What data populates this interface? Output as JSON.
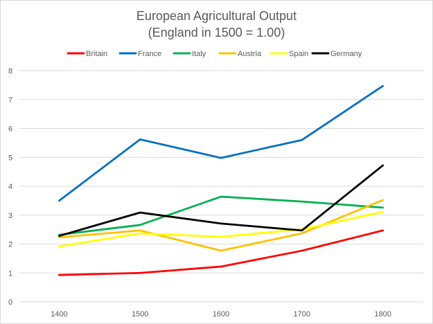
{
  "chart_data": {
    "type": "line",
    "title": "European Agricultural Output",
    "subtitle": "(England in 1500 = 1.00)",
    "xlabel": "",
    "ylabel": "",
    "categories": [
      "1400",
      "1500",
      "1600",
      "1700",
      "1800"
    ],
    "ylim": [
      0,
      8
    ],
    "yticks": [
      "0",
      "1",
      "2",
      "3",
      "4",
      "5",
      "6",
      "7",
      "8"
    ],
    "grid": true,
    "legend": "top",
    "series": [
      {
        "name": "Britain",
        "color": "#ff0000",
        "values": [
          0.93,
          1.0,
          1.22,
          1.77,
          2.47
        ]
      },
      {
        "name": "France",
        "color": "#0070c0",
        "values": [
          3.5,
          5.62,
          4.98,
          5.6,
          7.47
        ]
      },
      {
        "name": "Italy",
        "color": "#00b050",
        "values": [
          2.32,
          2.66,
          3.64,
          3.47,
          3.26
        ]
      },
      {
        "name": "Austria",
        "color": "#ffc000",
        "values": [
          2.23,
          2.47,
          1.77,
          2.37,
          3.52
        ]
      },
      {
        "name": "Spain",
        "color": "#ffff00",
        "values": [
          1.92,
          2.37,
          2.25,
          2.51,
          3.11
        ]
      },
      {
        "name": "Germany",
        "color": "#000000",
        "values": [
          2.28,
          3.09,
          2.71,
          2.47,
          4.72
        ]
      }
    ]
  }
}
